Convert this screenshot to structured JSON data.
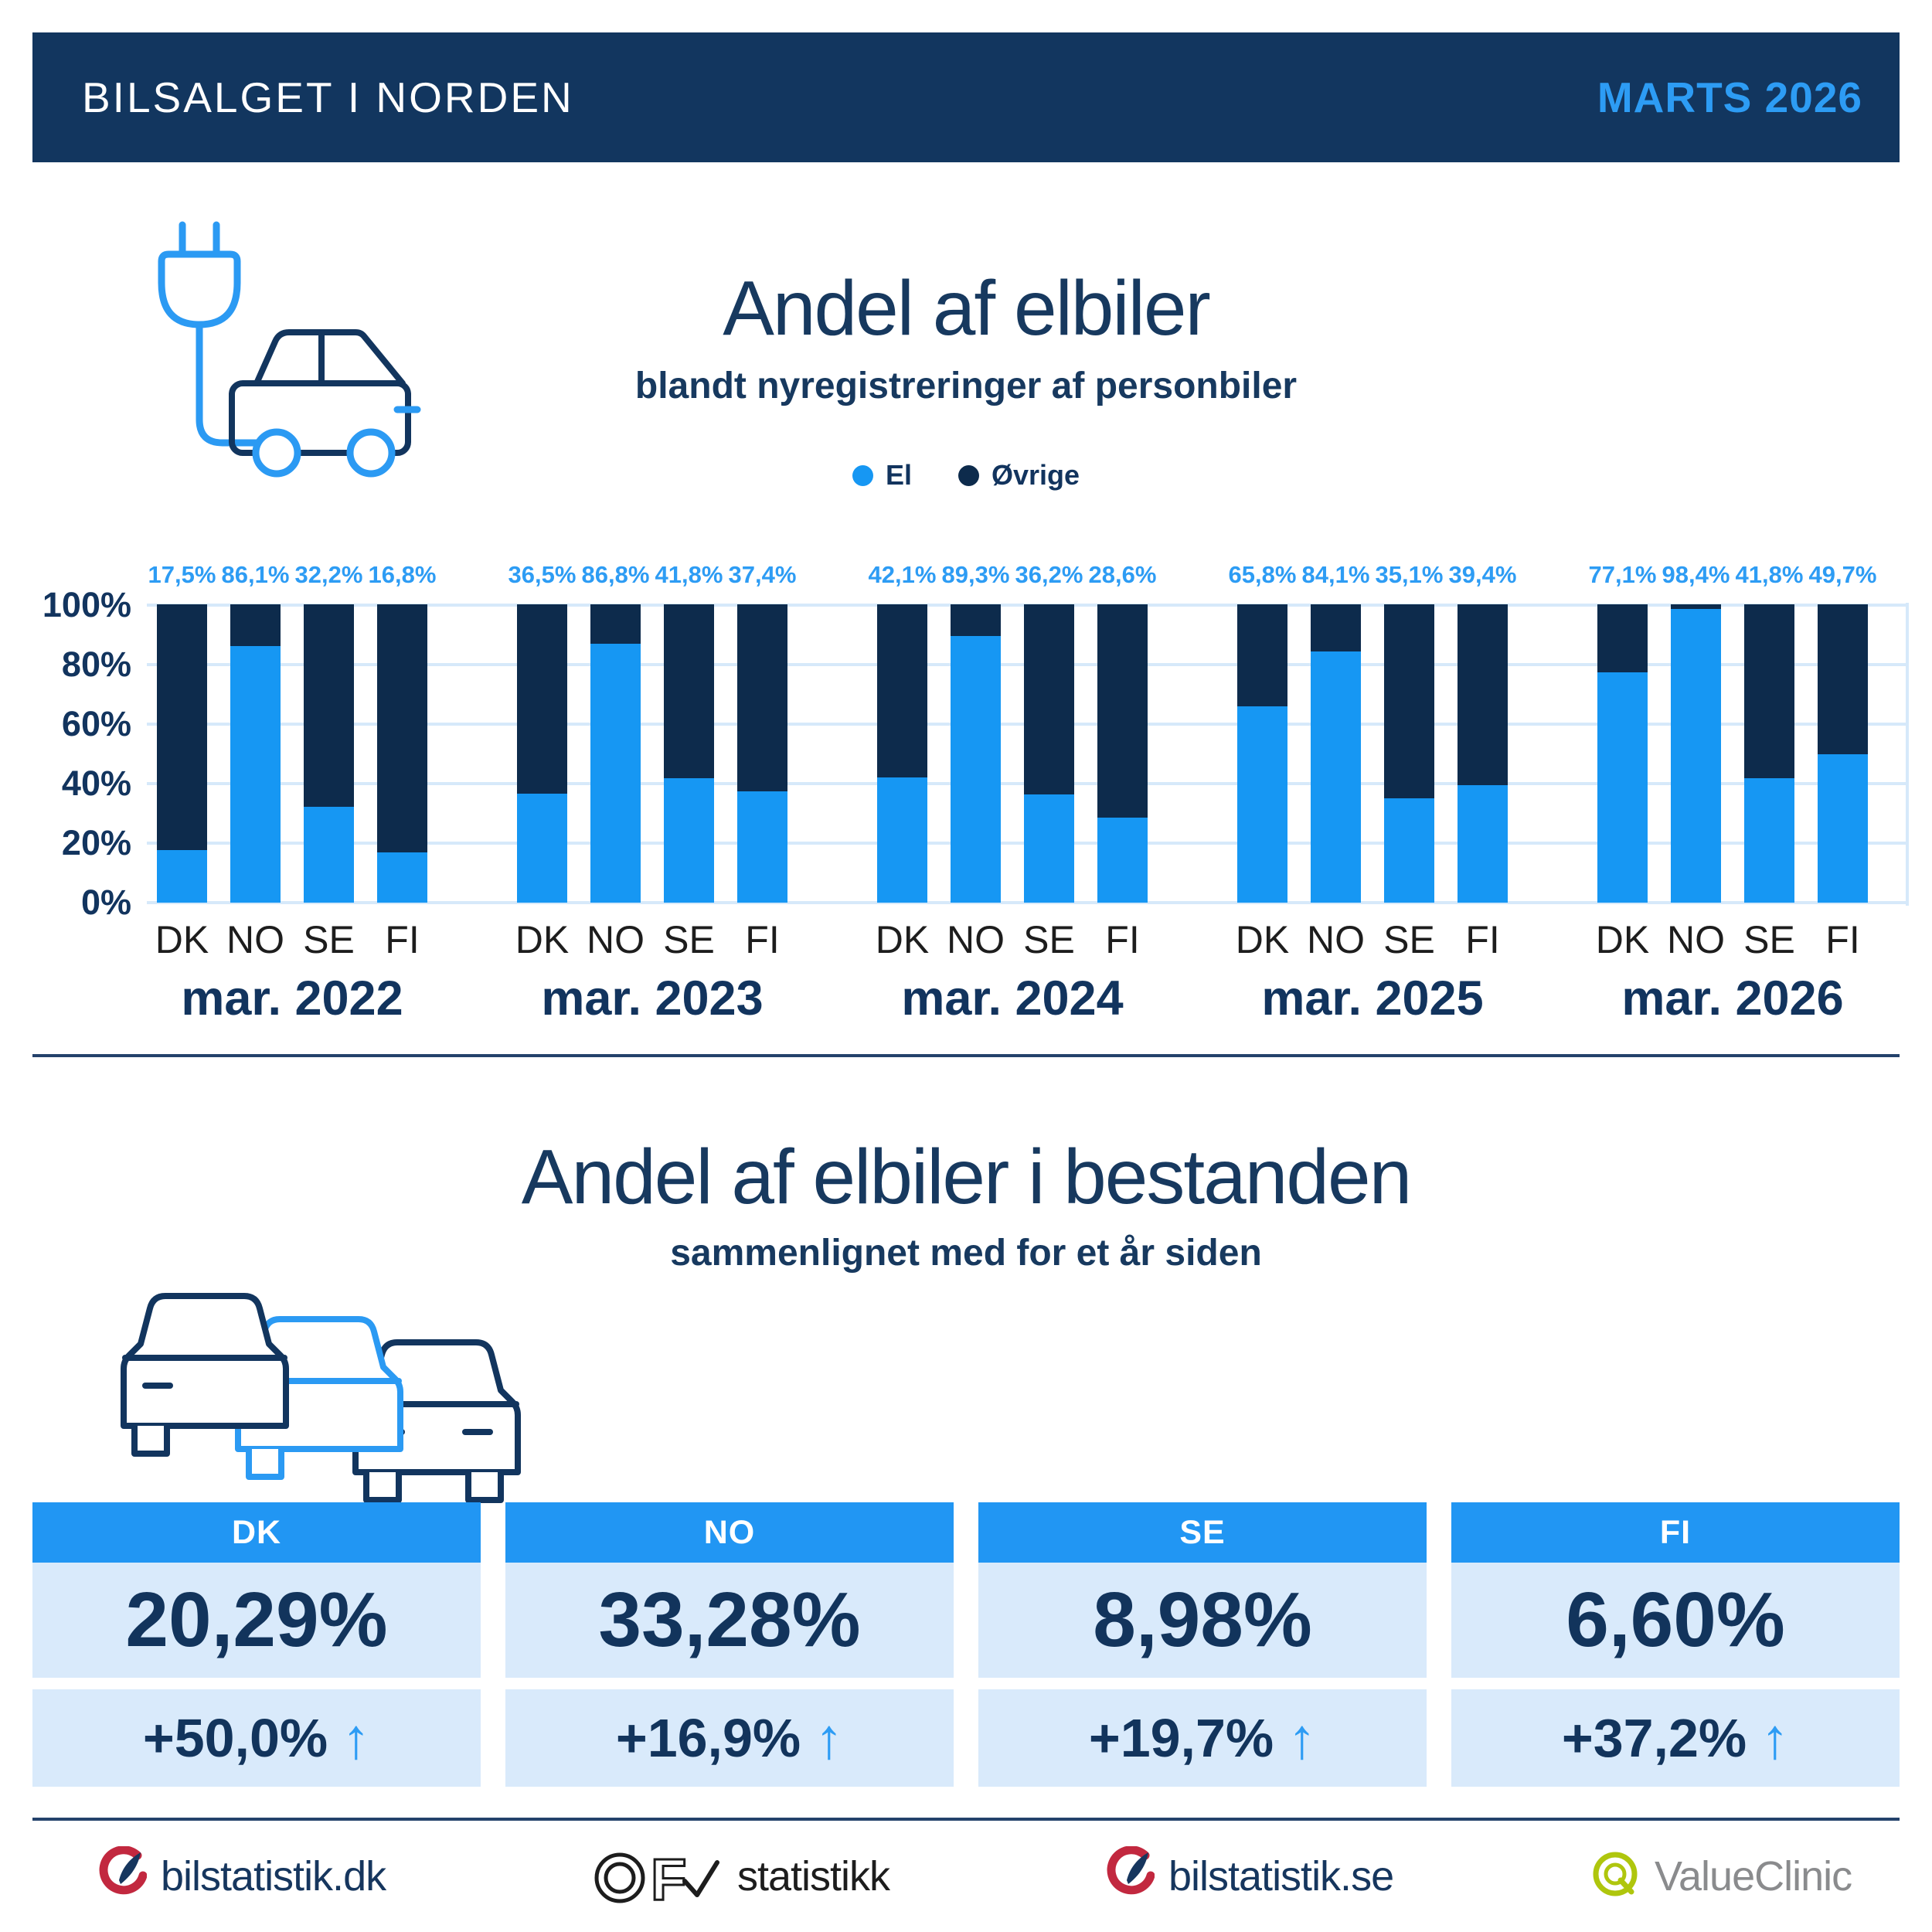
{
  "header": {
    "title": "BILSALGET I NORDEN",
    "period": "MARTS 2026"
  },
  "top_chart": {
    "title": "Andel af elbiler",
    "subtitle": "blandt nyregistreringer af personbiler",
    "legend": [
      {
        "label": "El",
        "color": "#1697F3"
      },
      {
        "label": "Øvrige",
        "color": "#0D2B4C"
      }
    ]
  },
  "chart_data": {
    "type": "bar",
    "stacked": true,
    "title": "Andel af elbiler blandt nyregistreringer af personbiler",
    "unit": "%",
    "ylim": [
      0,
      100
    ],
    "grid": true,
    "yticks": [
      "0%",
      "20%",
      "40%",
      "60%",
      "80%",
      "100%"
    ],
    "series_labels": [
      "El",
      "Øvrige"
    ],
    "categories": [
      "DK",
      "NO",
      "SE",
      "FI"
    ],
    "groups": [
      {
        "label": "mar. 2022",
        "values": [
          17.5,
          86.1,
          32.2,
          16.8
        ],
        "display": [
          "17,5%",
          "86,1%",
          "32,2%",
          "16,8%"
        ]
      },
      {
        "label": "mar. 2023",
        "values": [
          36.5,
          86.8,
          41.8,
          37.4
        ],
        "display": [
          "36,5%",
          "86,8%",
          "41,8%",
          "37,4%"
        ]
      },
      {
        "label": "mar. 2024",
        "values": [
          42.1,
          89.3,
          36.2,
          28.6
        ],
        "display": [
          "42,1%",
          "89,3%",
          "36,2%",
          "28,6%"
        ]
      },
      {
        "label": "mar. 2025",
        "values": [
          65.8,
          84.1,
          35.1,
          39.4
        ],
        "display": [
          "65,8%",
          "84,1%",
          "35,1%",
          "39,4%"
        ]
      },
      {
        "label": "mar. 2026",
        "values": [
          77.1,
          98.4,
          41.8,
          49.7
        ],
        "display": [
          "77,1%",
          "98,4%",
          "41,8%",
          "49,7%"
        ]
      }
    ]
  },
  "bottom_section": {
    "title": "Andel af elbiler i bestanden",
    "subtitle": "sammenlignet med for et år siden",
    "cards": [
      {
        "code": "DK",
        "share": "20,29%",
        "change": "+50,0%",
        "arrow": "↑"
      },
      {
        "code": "NO",
        "share": "33,28%",
        "change": "+16,9%",
        "arrow": "↑"
      },
      {
        "code": "SE",
        "share": "8,98%",
        "change": "+19,7%",
        "arrow": "↑"
      },
      {
        "code": "FI",
        "share": "6,60%",
        "change": "+37,2%",
        "arrow": "↑"
      }
    ]
  },
  "footer": {
    "logos": [
      {
        "name": "bilstatistik.dk"
      },
      {
        "name": "OFV statistikk",
        "text": "statistikk"
      },
      {
        "name": "bilstatistik.se"
      },
      {
        "name": "ValueClinic",
        "text": "ValueClinic"
      }
    ]
  },
  "colors": {
    "navy": "#0D2B4C",
    "header_navy": "#12365F",
    "blue": "#1697F3",
    "label_blue": "#2D9CF4",
    "card_bg": "#D9EAFB",
    "grid": "#D6E9FA",
    "logo_red": "#C2283F",
    "logo_lime": "#AFC60D"
  }
}
